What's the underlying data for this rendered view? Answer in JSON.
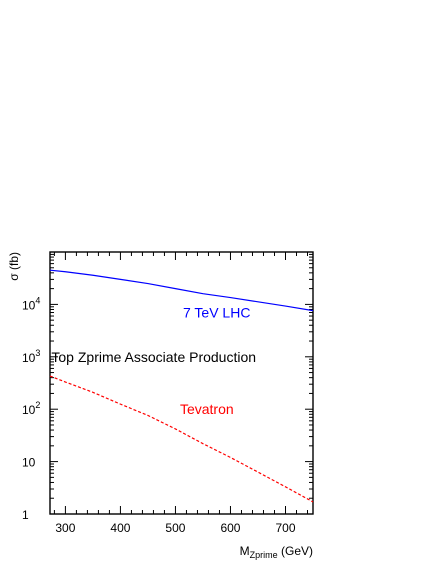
{
  "chart_data": {
    "type": "line",
    "title": "",
    "xlabel": {
      "base": "M",
      "subscript": "Zprime",
      "unit": " (GeV)"
    },
    "ylabel": "σ (fb)",
    "xlim": [
      272,
      750
    ],
    "ylim": [
      1,
      100000
    ],
    "y_scale": "log",
    "x_tick_labels": [
      {
        "value": 300,
        "label": "300"
      },
      {
        "value": 400,
        "label": "400"
      },
      {
        "value": 500,
        "label": "500"
      },
      {
        "value": 600,
        "label": "600"
      },
      {
        "value": 700,
        "label": "700"
      }
    ],
    "y_tick_labels": [
      {
        "value": 1,
        "base": "1",
        "exp": ""
      },
      {
        "value": 10,
        "base": "10",
        "exp": ""
      },
      {
        "value": 100,
        "base": "10",
        "exp": "2"
      },
      {
        "value": 1000,
        "base": "10",
        "exp": "3"
      },
      {
        "value": 10000,
        "base": "10",
        "exp": "4"
      }
    ],
    "grid": false,
    "legend": "none",
    "annotations": [
      {
        "text": "Top Zprime Associate Production",
        "x": 300,
        "y": 1000,
        "color": "#000000"
      }
    ],
    "series": [
      {
        "name": "7 TeV LHC",
        "color": "#0000ff",
        "dash": "solid",
        "label_pos": {
          "x": 575,
          "y": 7000
        },
        "x": [
          272,
          300,
          350,
          400,
          450,
          500,
          550,
          600,
          650,
          700,
          750
        ],
        "y": [
          45000,
          42000,
          36000,
          30000,
          25000,
          20000,
          16000,
          13500,
          11200,
          9300,
          7600
        ]
      },
      {
        "name": "Tevatron",
        "color": "#ff0000",
        "dash": "dashed",
        "label_pos": {
          "x": 557,
          "y": 100
        },
        "x": [
          272,
          300,
          350,
          400,
          450,
          500,
          550,
          600,
          650,
          700,
          750
        ],
        "y": [
          430,
          330,
          210,
          125,
          76,
          42,
          22,
          12,
          6.3,
          3.3,
          1.7
        ]
      }
    ]
  }
}
